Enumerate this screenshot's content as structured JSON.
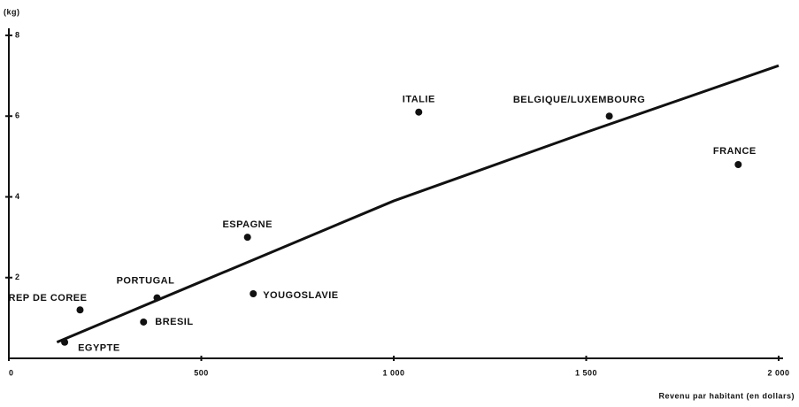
{
  "chart_data": {
    "type": "scatter",
    "y_label": "(kg)",
    "x_label": "Revenu par habitant (en dollars)",
    "categories": [
      "REP DE COREE",
      "EGYPTE",
      "BRESIL",
      "PORTUGAL",
      "YOUGOSLAVIE",
      "ESPAGNE",
      "ITALIE",
      "BELGIQUE/LUXEMBOURG",
      "FRANCE"
    ],
    "x": [
      185,
      145,
      350,
      385,
      635,
      620,
      1065,
      1560,
      1895
    ],
    "values": [
      1.2,
      0.4,
      0.9,
      1.5,
      1.6,
      3.0,
      6.1,
      6.0,
      4.8
    ],
    "color": "#111111",
    "trend": {
      "x": [
        125,
        500,
        1000,
        1500,
        2000
      ],
      "values": [
        0.4,
        1.9,
        3.9,
        5.6,
        7.25
      ]
    },
    "xlim": [
      0,
      2000
    ],
    "xticks": [
      0,
      500,
      {
        "value": 1000,
        "label": "1 000"
      },
      {
        "value": 1500,
        "label": "1 500"
      },
      {
        "value": 2000,
        "label": "2 000"
      }
    ],
    "ylim": [
      0,
      8
    ],
    "yticks": [
      2,
      4,
      6,
      8
    ],
    "grid": false
  }
}
